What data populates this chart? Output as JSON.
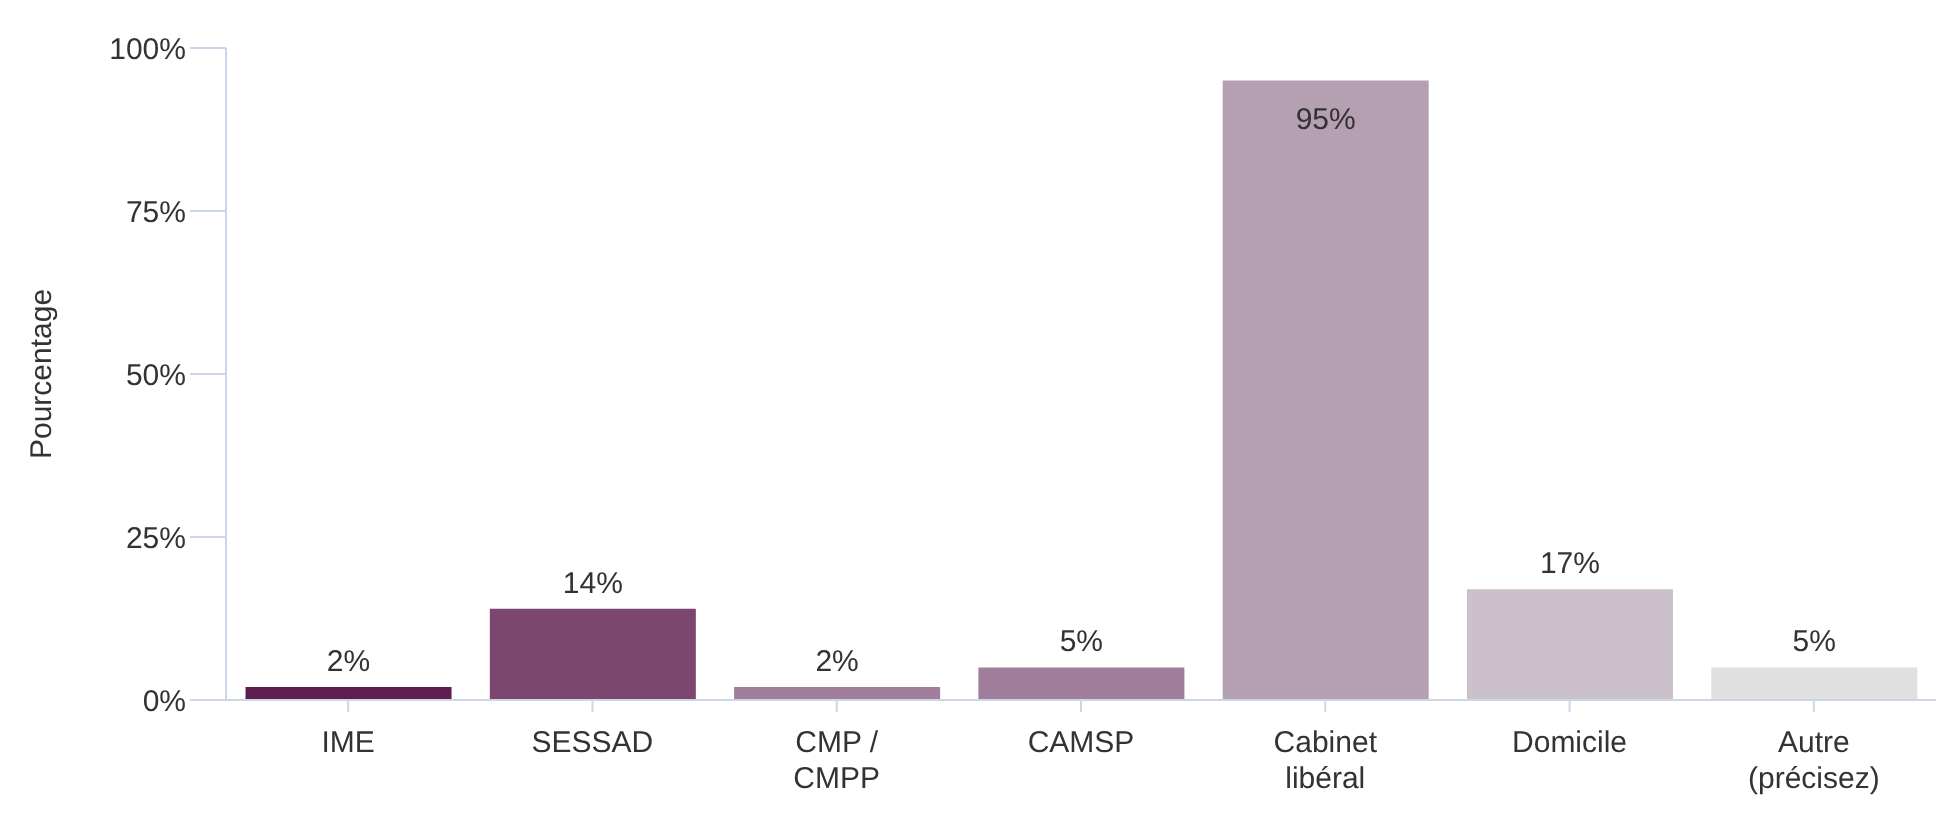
{
  "chart_data": {
    "type": "bar",
    "ylabel": "Pourcentage",
    "categories": [
      "IME",
      "SESSAD",
      "CMP / CMPP",
      "CAMSP",
      "Cabinet libéral",
      "Domicile",
      "Autre (précisez)"
    ],
    "values": [
      2,
      14,
      2,
      5,
      95,
      17,
      5
    ],
    "colors": [
      "#5e1c4f",
      "#7b4670",
      "#a07e9b",
      "#a07e9b",
      "#b5a0b2",
      "#ccc0ca",
      "#e0e0e0"
    ],
    "value_labels": [
      "2%",
      "14%",
      "2%",
      "5%",
      "95%",
      "17%",
      "5%"
    ],
    "ylim": [
      0,
      100
    ],
    "yticks": [
      {
        "value": 0,
        "label": "0%"
      },
      {
        "value": 25,
        "label": "25%"
      },
      {
        "value": 50,
        "label": "50%"
      },
      {
        "value": 75,
        "label": "75%"
      },
      {
        "value": 100,
        "label": "100%"
      }
    ],
    "grid": false,
    "legend": false
  }
}
